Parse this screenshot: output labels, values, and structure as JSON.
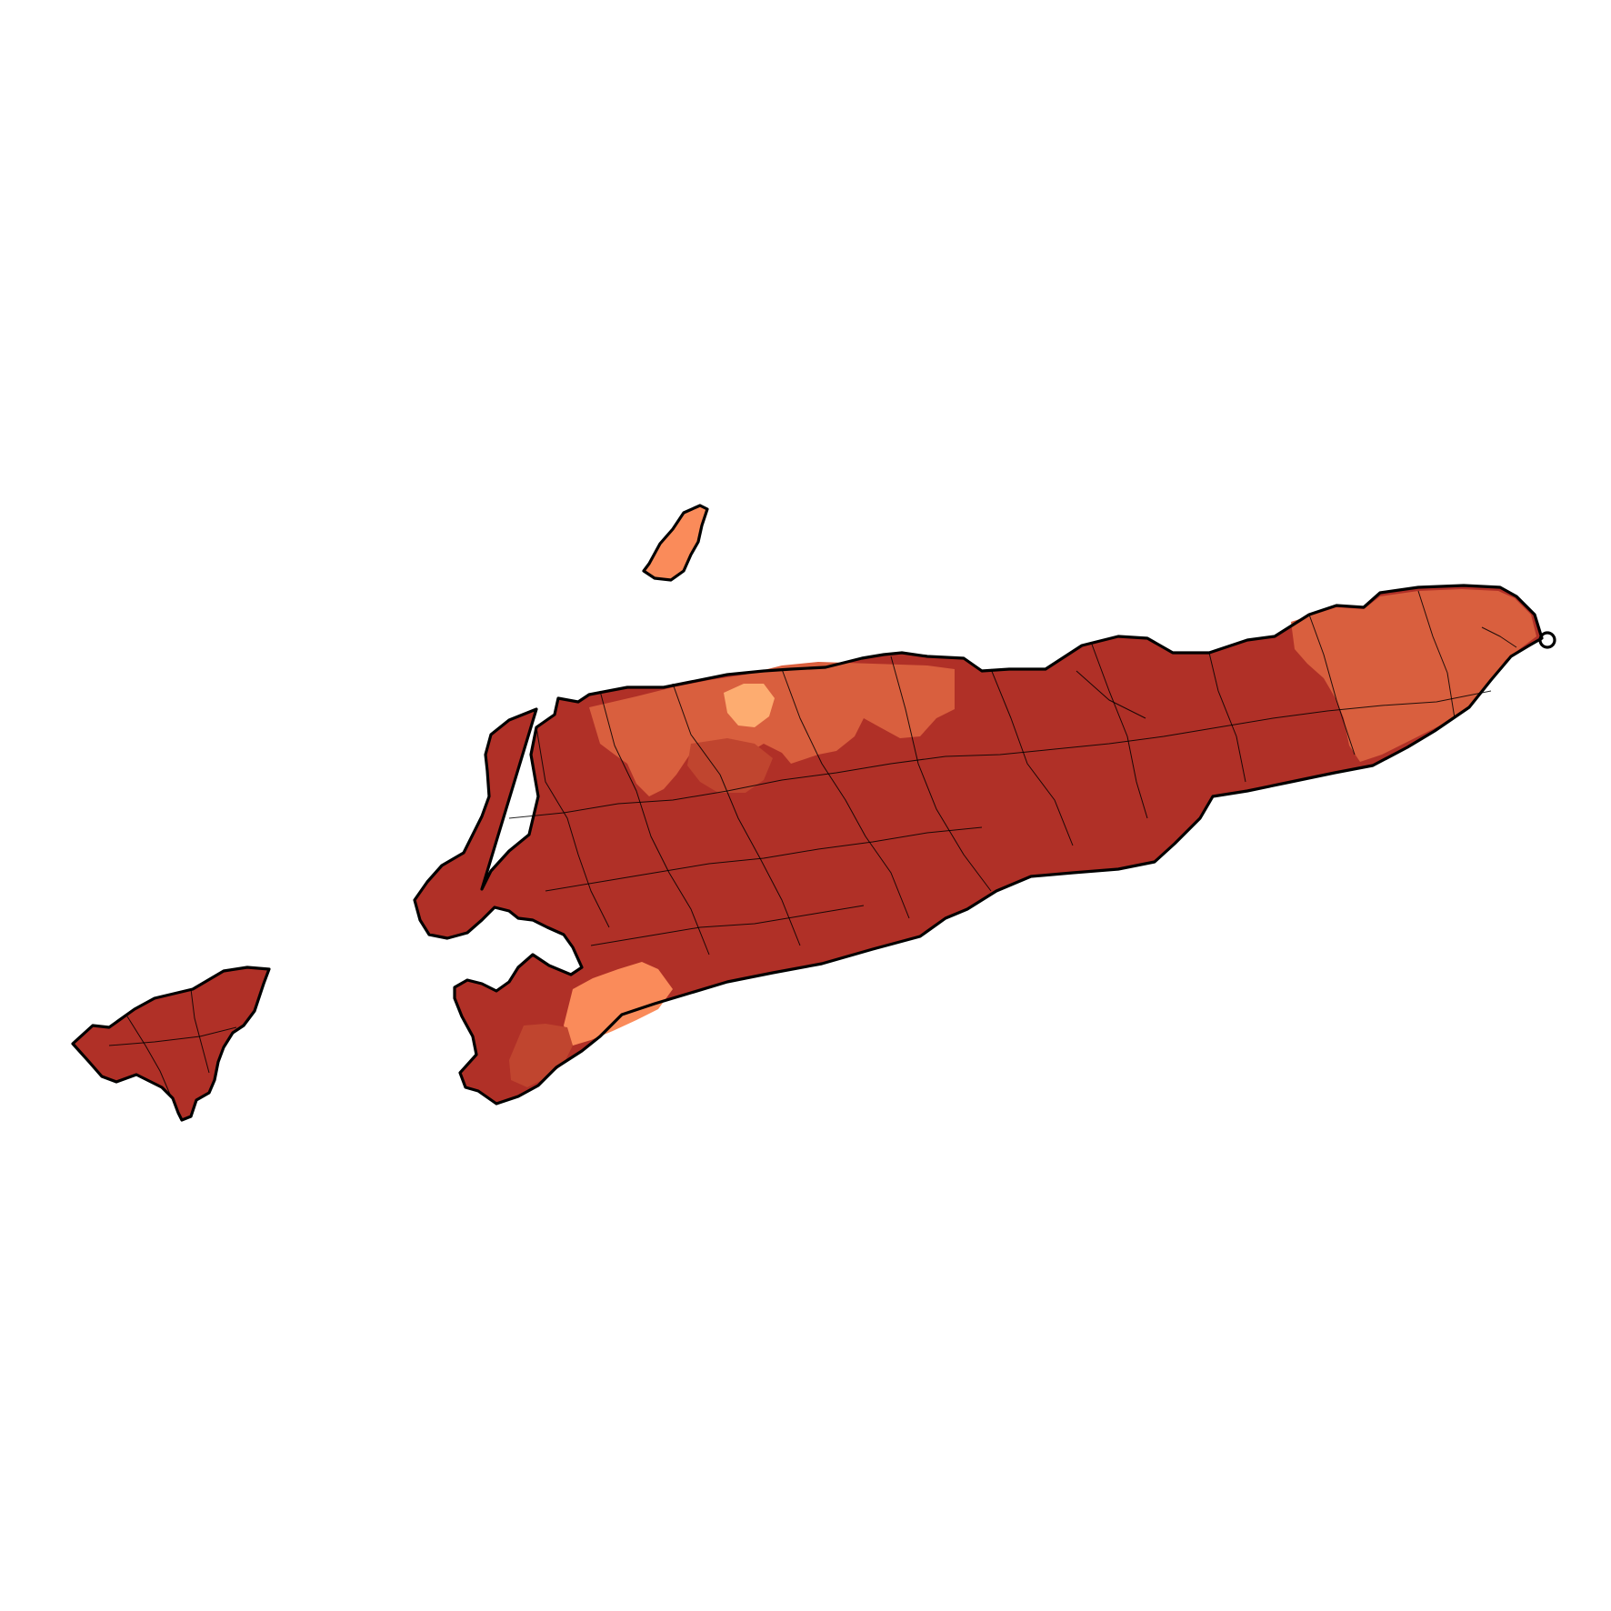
{
  "map": {
    "palette": {
      "darkest": "#b03027",
      "dark": "#c0452f",
      "medium": "#d95f3e",
      "light": "#fa8b5a",
      "lightest": "#fdac70",
      "boundary": "#000000",
      "background": "#ffffff"
    },
    "regions": [
      {
        "name": "main-island",
        "class": "darkest"
      },
      {
        "name": "western-enclave",
        "class": "darkest"
      },
      {
        "name": "north-island",
        "class": "light"
      },
      {
        "name": "north-coast-band",
        "class": "medium"
      },
      {
        "name": "eastern-tip",
        "class": "medium"
      },
      {
        "name": "south-west-patch",
        "class": "light"
      },
      {
        "name": "north-coast-small-patch",
        "class": "lightest"
      }
    ]
  }
}
